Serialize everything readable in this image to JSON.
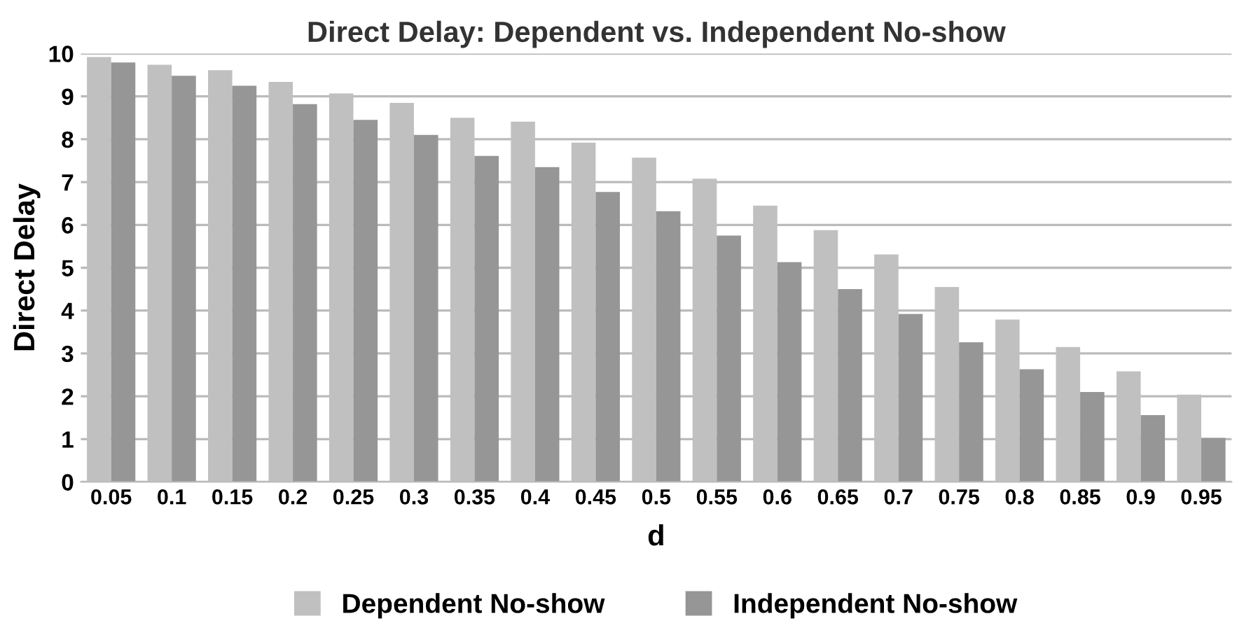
{
  "chart_data": {
    "type": "bar",
    "title": "Direct Delay: Dependent vs. Independent No-show",
    "xlabel": "d",
    "ylabel": "Direct Delay",
    "categories": [
      "0.05",
      "0.1",
      "0.15",
      "0.2",
      "0.25",
      "0.3",
      "0.35",
      "0.4",
      "0.45",
      "0.5",
      "0.55",
      "0.6",
      "0.65",
      "0.7",
      "0.75",
      "0.8",
      "0.85",
      "0.9",
      "0.95"
    ],
    "series": [
      {
        "name": "Dependent No-show",
        "color": "#c0c0c0",
        "values": [
          9.92,
          9.74,
          9.61,
          9.34,
          9.07,
          8.85,
          8.5,
          8.41,
          7.92,
          7.57,
          7.08,
          6.45,
          5.88,
          5.31,
          4.55,
          3.79,
          3.15,
          2.58,
          2.04
        ]
      },
      {
        "name": "Independent No-show",
        "color": "#969696",
        "values": [
          9.79,
          9.48,
          9.25,
          8.82,
          8.45,
          8.1,
          7.61,
          7.35,
          6.77,
          6.32,
          5.75,
          5.13,
          4.5,
          3.92,
          3.26,
          2.63,
          2.1,
          1.56,
          1.03
        ]
      }
    ],
    "ylim": [
      0,
      10
    ],
    "yticks": [
      0,
      1,
      2,
      3,
      4,
      5,
      6,
      7,
      8,
      9,
      10
    ],
    "grid": "y",
    "legend": "bottom"
  }
}
